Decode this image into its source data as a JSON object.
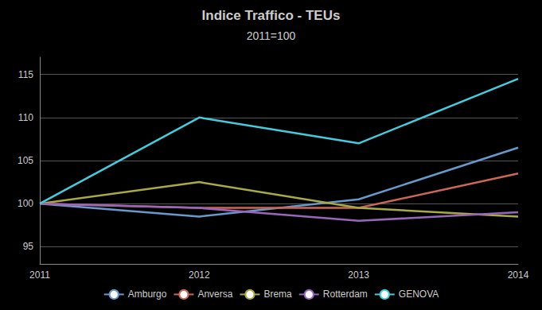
{
  "chart_data": {
    "type": "line",
    "title": "Indice Traffico - TEUs",
    "subtitle": "2011=100",
    "categories": [
      "2011",
      "2012",
      "2013",
      "2014"
    ],
    "series": [
      {
        "name": "Amburgo",
        "color": "#6699CC",
        "values": [
          100,
          98.5,
          100.5,
          106.5
        ]
      },
      {
        "name": "Anversa",
        "color": "#CC6655",
        "values": [
          100,
          99.5,
          99.5,
          103.5
        ]
      },
      {
        "name": "Brema",
        "color": "#AAAA44",
        "values": [
          100,
          102.5,
          99.5,
          98.5
        ]
      },
      {
        "name": "Rotterdam",
        "color": "#9966BB",
        "values": [
          100,
          99.5,
          98.0,
          99.0
        ]
      },
      {
        "name": "GENOVA",
        "color": "#44CCDD",
        "values": [
          100,
          110,
          107,
          114.5
        ]
      }
    ],
    "ylim": [
      93,
      117
    ],
    "yticks": [
      95,
      100,
      105,
      110,
      115
    ],
    "grid": true,
    "legend": "bottom"
  }
}
